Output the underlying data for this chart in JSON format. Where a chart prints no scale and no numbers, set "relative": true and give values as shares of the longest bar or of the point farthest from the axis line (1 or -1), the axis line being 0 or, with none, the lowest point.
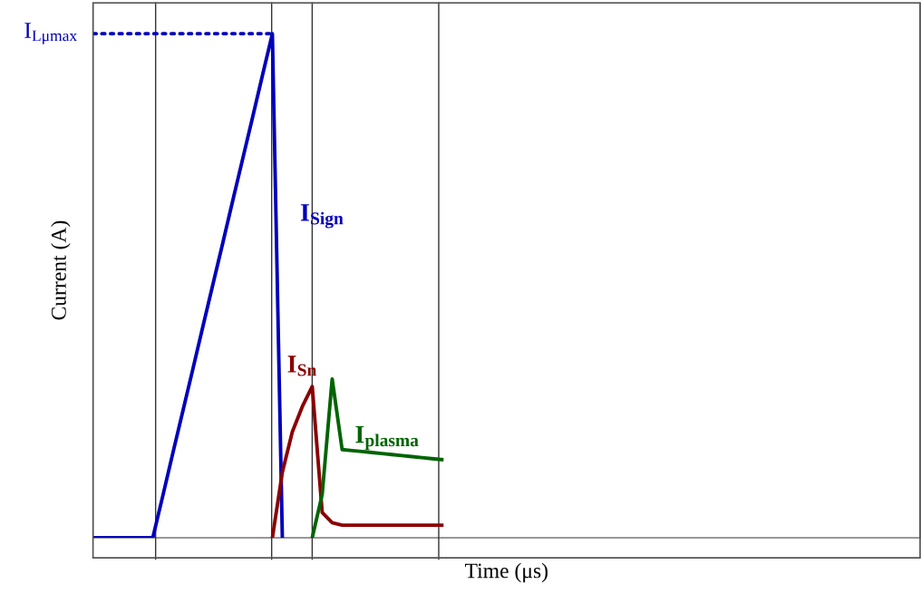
{
  "chart_data": {
    "type": "line",
    "relative": true,
    "xlabel": "Time (μs)",
    "ylabel": "Current (A)",
    "tick_labels": false,
    "categories": [
      null,
      null,
      null,
      null,
      null,
      null,
      null,
      null,
      null,
      null,
      null,
      null,
      null,
      null,
      null,
      null,
      null,
      null,
      null,
      null,
      null,
      null,
      null,
      null,
      null,
      null,
      null,
      null,
      null,
      null,
      null,
      null,
      null,
      null,
      null,
      null,
      null,
      null,
      null,
      null,
      null,
      null,
      null,
      null,
      null,
      null,
      null,
      null,
      null,
      null,
      null,
      null,
      null,
      null,
      null,
      null,
      null,
      null,
      null,
      null,
      null,
      null,
      null,
      null,
      null,
      null,
      null,
      null,
      null,
      null,
      null,
      null,
      null,
      null,
      null,
      null,
      null,
      null,
      null,
      null,
      null,
      null,
      null,
      null
    ],
    "series": [
      {
        "name": "I$_{Sign}$",
        "color": "#0000bb",
        "values": [
          0,
          0,
          0,
          0,
          0,
          0,
          0,
          0.083,
          0.167,
          0.25,
          0.333,
          0.417,
          0.5,
          0.583,
          0.667,
          0.75,
          0.833,
          0.917,
          1,
          0,
          null,
          null,
          null,
          null,
          null,
          null,
          null,
          null,
          null,
          null,
          null,
          null,
          null,
          null,
          null,
          null,
          null,
          null,
          null,
          null,
          null,
          null,
          null,
          null,
          null,
          null,
          null,
          null,
          null,
          null,
          null,
          null,
          null,
          null,
          null,
          null,
          null,
          null,
          null,
          null,
          null,
          null,
          null,
          null,
          null,
          null,
          null,
          null,
          null,
          null,
          null,
          null,
          null,
          null,
          null,
          null,
          null,
          null,
          null,
          null,
          null,
          null,
          null,
          null
        ]
      },
      {
        "name": "I$_{Lμmax}$",
        "color": "#0000bb",
        "line_style": "dotted",
        "values": [
          1,
          1,
          1,
          1,
          1,
          1,
          1,
          1,
          1,
          1,
          1,
          1,
          1,
          1,
          1,
          1,
          1,
          1,
          1,
          null,
          null,
          null,
          null,
          null,
          null,
          null,
          null,
          null,
          null,
          null,
          null,
          null,
          null,
          null,
          null,
          null,
          null,
          null,
          null,
          null,
          null,
          null,
          null,
          null,
          null,
          null,
          null,
          null,
          null,
          null,
          null,
          null,
          null,
          null,
          null,
          null,
          null,
          null,
          null,
          null,
          null,
          null,
          null,
          null,
          null,
          null,
          null,
          null,
          null,
          null,
          null,
          null,
          null,
          null,
          null,
          null,
          null,
          null,
          null,
          null,
          null,
          null,
          null,
          null
        ]
      },
      {
        "name": "I$_{Sn}$",
        "color": "#8b0000",
        "values": [
          null,
          null,
          null,
          null,
          null,
          null,
          null,
          null,
          null,
          null,
          null,
          null,
          null,
          null,
          null,
          null,
          null,
          null,
          0,
          0.13,
          0.21,
          0.26,
          0.3,
          0.05,
          0.03,
          0.025,
          0.025,
          0.025,
          0.025,
          0.025,
          0.025,
          0.025,
          0.025,
          0.025,
          0.025,
          0.025,
          null,
          null,
          null,
          null,
          null,
          null,
          null,
          null,
          null,
          null,
          null,
          null,
          null,
          null,
          null,
          null,
          null,
          null,
          null,
          null,
          null,
          null,
          null,
          null,
          null,
          null,
          null,
          null,
          null,
          null,
          null,
          null,
          null,
          null,
          null,
          null,
          null,
          null,
          null,
          null,
          null,
          null,
          null,
          null,
          null,
          null,
          null,
          null
        ]
      },
      {
        "name": "I$_{plasma}$",
        "color": "#006400",
        "values": [
          null,
          null,
          null,
          null,
          null,
          null,
          null,
          null,
          null,
          null,
          null,
          null,
          null,
          null,
          null,
          null,
          null,
          null,
          null,
          null,
          null,
          null,
          0,
          0.086,
          0.315,
          0.175,
          0.173,
          0.171,
          0.169,
          0.167,
          0.165,
          0.163,
          0.161,
          0.159,
          0.157,
          0.155,
          null,
          null,
          null,
          null,
          null,
          null,
          null,
          null,
          null,
          null,
          null,
          null,
          null,
          null,
          null,
          null,
          null,
          null,
          null,
          null,
          null,
          null,
          null,
          null,
          null,
          null,
          null,
          null,
          null,
          null,
          null,
          null,
          null,
          null,
          null,
          null,
          null,
          null,
          null,
          null,
          null,
          null,
          null,
          null,
          null,
          null,
          null,
          null
        ]
      }
    ]
  }
}
